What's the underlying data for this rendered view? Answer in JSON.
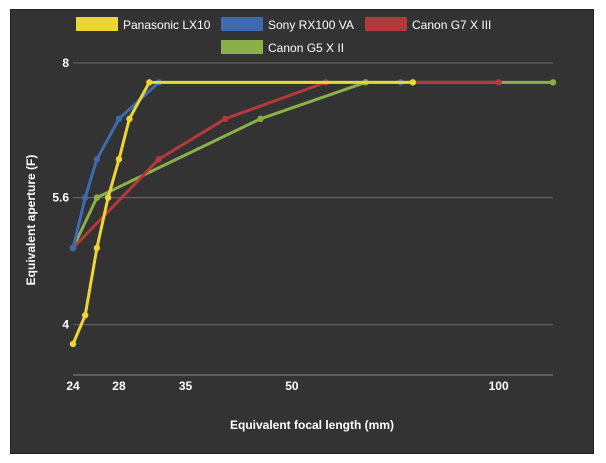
{
  "chart_data": {
    "type": "line",
    "xlabel": "Equivalent focal length (mm)",
    "ylabel": "Equivalent aperture (F)",
    "x_scale": "log",
    "y_scale": "log",
    "xlim": [
      24,
      120
    ],
    "ylim": [
      3.5,
      8
    ],
    "x_ticks": [
      24,
      28,
      35,
      50,
      100
    ],
    "x_tick_labels": [
      "24",
      "28",
      "35",
      "50",
      "100"
    ],
    "y_ticks": [
      4,
      5.6,
      8
    ],
    "y_tick_labels": [
      "4",
      "5.6",
      "8"
    ],
    "grid": "horizontal",
    "legend_position": "top",
    "series": [
      {
        "name": "Panasonic LX10",
        "color": "#ecd535",
        "points": [
          [
            24,
            3.8
          ],
          [
            25,
            4.1
          ],
          [
            26,
            4.9
          ],
          [
            27,
            5.6
          ],
          [
            28,
            6.2
          ],
          [
            29,
            6.9
          ],
          [
            31,
            7.6
          ],
          [
            75,
            7.6
          ]
        ]
      },
      {
        "name": "Sony RX100 VA",
        "color": "#3e6ab2",
        "points": [
          [
            24,
            4.9
          ],
          [
            25,
            5.6
          ],
          [
            26,
            6.2
          ],
          [
            28,
            6.9
          ],
          [
            32,
            7.6
          ],
          [
            72,
            7.6
          ]
        ]
      },
      {
        "name": "Canon G7 X III",
        "color": "#b23a3a",
        "points": [
          [
            24,
            4.9
          ],
          [
            32,
            6.2
          ],
          [
            40,
            6.9
          ],
          [
            56,
            7.6
          ],
          [
            100,
            7.6
          ]
        ]
      },
      {
        "name": "Canon G5 X II",
        "color": "#8ab04a",
        "points": [
          [
            24,
            4.9
          ],
          [
            26,
            5.6
          ],
          [
            45,
            6.9
          ],
          [
            64,
            7.6
          ],
          [
            120,
            7.6
          ]
        ]
      }
    ]
  }
}
